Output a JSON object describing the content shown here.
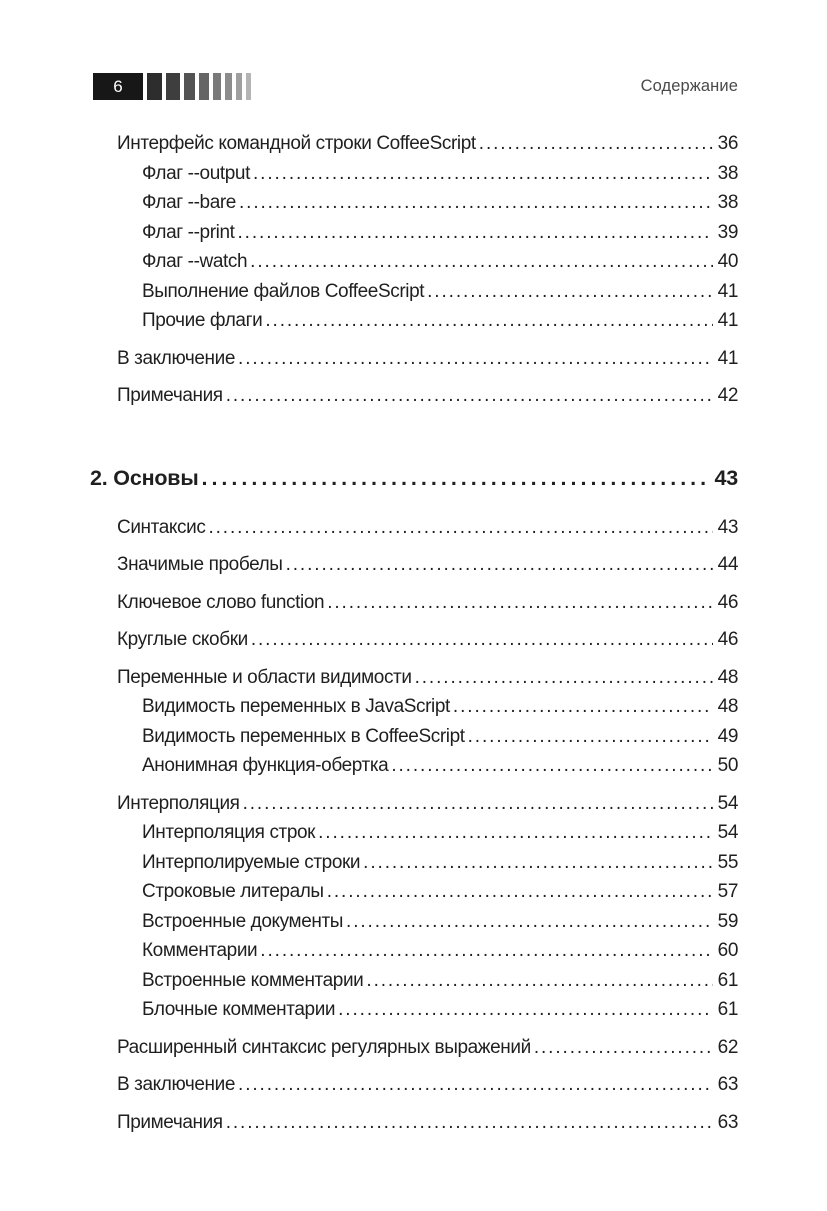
{
  "header": {
    "page_number": "6",
    "running_title": "Содержание",
    "bars": [
      {
        "width": 15,
        "color": "#2d2d2d"
      },
      {
        "width": 14,
        "color": "#3e3e3e"
      },
      {
        "width": 11,
        "color": "#535353"
      },
      {
        "width": 10,
        "color": "#656565"
      },
      {
        "width": 8,
        "color": "#797979"
      },
      {
        "width": 7,
        "color": "#8c8c8c"
      },
      {
        "width": 6,
        "color": "#9f9f9f"
      },
      {
        "width": 5,
        "color": "#b4b4b4"
      }
    ]
  },
  "colors": {
    "text": "#1f1f1f",
    "running_title": "#4a4a4a",
    "page_number_box": "#171717",
    "page_background": "#ffffff"
  },
  "toc": {
    "entries": [
      {
        "level": 1,
        "label": "Интерфейс командной строки CoffeeScript",
        "page": "36"
      },
      {
        "level": 2,
        "label": "Флаг --output",
        "page": "38"
      },
      {
        "level": 2,
        "label": "Флаг --bare",
        "page": "38"
      },
      {
        "level": 2,
        "label": "Флаг --print",
        "page": "39"
      },
      {
        "level": 2,
        "label": "Флаг --watch",
        "page": "40"
      },
      {
        "level": 2,
        "label": "Выполнение файлов CoffeeScript",
        "page": "41"
      },
      {
        "level": 2,
        "label": "Прочие флаги",
        "page": "41"
      },
      {
        "level": 1,
        "label": "В заключение",
        "page": "41"
      },
      {
        "level": 1,
        "label": "Примечания",
        "page": "42"
      },
      {
        "level": 0,
        "label": "2. Основы",
        "page": "43"
      },
      {
        "level": 1,
        "label": "Синтаксис",
        "page": "43"
      },
      {
        "level": 1,
        "label": "Значимые пробелы",
        "page": "44"
      },
      {
        "level": 1,
        "label": "Ключевое слово function",
        "page": "46"
      },
      {
        "level": 1,
        "label": "Круглые скобки",
        "page": "46"
      },
      {
        "level": 1,
        "label": "Переменные и области видимости",
        "page": "48"
      },
      {
        "level": 2,
        "label": "Видимость переменных в JavaScript",
        "page": "48"
      },
      {
        "level": 2,
        "label": "Видимость переменных в CoffeeScript",
        "page": "49"
      },
      {
        "level": 2,
        "label": "Анонимная функция-обертка",
        "page": "50"
      },
      {
        "level": 1,
        "label": "Интерполяция",
        "page": "54"
      },
      {
        "level": 2,
        "label": "Интерполяция строк",
        "page": "54"
      },
      {
        "level": 2,
        "label": "Интерполируемые строки",
        "page": "55"
      },
      {
        "level": 2,
        "label": "Строковые литералы",
        "page": "57"
      },
      {
        "level": 2,
        "label": "Встроенные документы",
        "page": "59"
      },
      {
        "level": 2,
        "label": "Комментарии",
        "page": "60"
      },
      {
        "level": 2,
        "label": "Встроенные комментарии",
        "page": "61"
      },
      {
        "level": 2,
        "label": "Блочные комментарии",
        "page": "61"
      },
      {
        "level": 1,
        "label": "Расширенный синтаксис регулярных выражений",
        "page": "62"
      },
      {
        "level": 1,
        "label": "В заключение",
        "page": "63"
      },
      {
        "level": 1,
        "label": "Примечания",
        "page": "63"
      }
    ]
  }
}
